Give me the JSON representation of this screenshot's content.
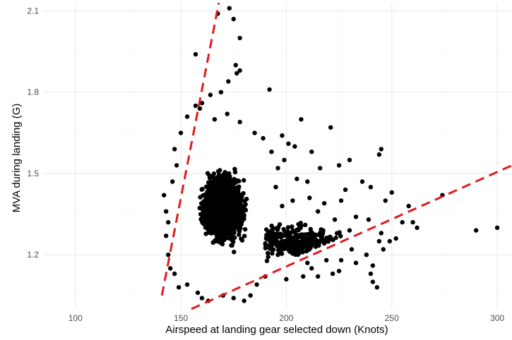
{
  "chart_data": {
    "type": "scatter",
    "title": "",
    "xlabel": "Airspeed at landing gear selected down (Knots)",
    "ylabel": "MVA during landing (G)",
    "xlim": [
      85,
      307
    ],
    "ylim": [
      1.0,
      2.13
    ],
    "x_ticks": [
      100,
      150,
      200,
      250,
      300
    ],
    "y_ticks": [
      1.2,
      1.5,
      1.8,
      2.1
    ],
    "x_tick_labels": [
      "100",
      "150",
      "200",
      "250",
      "300"
    ],
    "y_tick_labels": [
      "1.2",
      "1.5",
      "1.8",
      "2.1"
    ],
    "grid": true,
    "point_color": "#000000",
    "core_cluster": {
      "x_range": [
        145,
        195
      ],
      "y_range": [
        1.08,
        1.72
      ],
      "center": [
        170,
        1.38
      ],
      "description_count": "dense"
    },
    "points": [
      [
        167.5,
        2.09
      ],
      [
        173,
        2.11
      ],
      [
        175,
        2.07
      ],
      [
        178,
        2.0
      ],
      [
        157,
        1.94
      ],
      [
        176,
        1.9
      ],
      [
        178,
        1.88
      ],
      [
        176.5,
        1.87
      ],
      [
        172.5,
        1.84
      ],
      [
        192,
        1.81
      ],
      [
        169,
        1.8
      ],
      [
        159,
        1.74
      ],
      [
        160,
        1.76
      ],
      [
        164,
        1.79
      ],
      [
        207,
        1.7
      ],
      [
        221,
        1.67
      ],
      [
        204,
        1.6
      ],
      [
        212,
        1.58
      ],
      [
        216,
        1.52
      ],
      [
        245,
        1.59
      ],
      [
        244,
        1.57
      ],
      [
        230,
        1.55
      ],
      [
        225,
        1.53
      ],
      [
        236,
        1.47
      ],
      [
        228,
        1.44
      ],
      [
        240,
        1.45
      ],
      [
        250,
        1.43
      ],
      [
        226,
        1.4
      ],
      [
        247,
        1.4
      ],
      [
        258,
        1.38
      ],
      [
        233,
        1.34
      ],
      [
        239,
        1.33
      ],
      [
        255,
        1.32
      ],
      [
        230,
        1.29
      ],
      [
        245,
        1.28
      ],
      [
        262,
        1.3
      ],
      [
        244,
        1.25
      ],
      [
        249,
        1.25
      ],
      [
        252,
        1.26
      ],
      [
        231,
        1.22
      ],
      [
        238,
        1.2
      ],
      [
        219,
        1.18
      ],
      [
        226,
        1.18
      ],
      [
        246,
        1.22
      ],
      [
        233,
        1.17
      ],
      [
        241,
        1.16
      ],
      [
        212,
        1.15
      ],
      [
        225,
        1.14
      ],
      [
        240,
        1.13
      ],
      [
        215,
        1.12
      ],
      [
        222,
        1.13
      ],
      [
        208,
        1.12
      ],
      [
        241,
        1.1
      ],
      [
        243,
        1.08
      ],
      [
        260,
        1.32
      ],
      [
        274,
        1.42
      ],
      [
        290,
        1.29
      ],
      [
        300,
        1.3
      ],
      [
        198,
        1.64
      ],
      [
        201,
        1.61
      ],
      [
        199,
        1.55
      ],
      [
        205,
        1.48
      ],
      [
        210,
        1.47
      ],
      [
        211,
        1.41
      ],
      [
        203,
        1.4
      ],
      [
        218,
        1.39
      ],
      [
        215,
        1.36
      ],
      [
        223,
        1.33
      ],
      [
        209,
        1.31
      ],
      [
        216,
        1.28
      ],
      [
        202,
        1.26
      ],
      [
        207,
        1.22
      ],
      [
        196,
        1.2
      ],
      [
        210,
        1.17
      ],
      [
        200,
        1.11
      ],
      [
        190,
        1.12
      ],
      [
        186,
        1.09
      ],
      [
        142,
        1.42
      ],
      [
        143,
        1.36
      ],
      [
        144,
        1.32
      ],
      [
        143,
        1.27
      ],
      [
        144,
        1.2
      ],
      [
        145,
        1.15
      ],
      [
        147,
        1.13
      ],
      [
        146,
        1.47
      ],
      [
        148,
        1.53
      ],
      [
        147,
        1.59
      ],
      [
        150,
        1.65
      ],
      [
        153,
        1.71
      ],
      [
        157,
        1.75
      ],
      [
        160,
        1.04
      ],
      [
        163,
        1.03
      ],
      [
        158,
        1.06
      ],
      [
        175,
        1.04
      ],
      [
        183,
        1.05
      ],
      [
        180,
        1.03
      ],
      [
        170,
        1.05
      ],
      [
        153,
        1.09
      ],
      [
        149,
        1.08
      ],
      [
        166,
        1.7
      ],
      [
        172,
        1.72
      ],
      [
        178,
        1.69
      ],
      [
        185,
        1.65
      ],
      [
        189,
        1.63
      ],
      [
        193,
        1.58
      ],
      [
        196,
        1.52
      ],
      [
        195,
        1.45
      ],
      [
        198,
        1.38
      ]
    ],
    "reference_lines": [
      {
        "style": "dashed",
        "color": "#e31a1c",
        "from": [
          141,
          1.05
        ],
        "to": [
          168,
          2.13
        ]
      },
      {
        "style": "dashed",
        "color": "#e31a1c",
        "from": [
          155,
          1.0
        ],
        "to": [
          307,
          1.53
        ]
      }
    ]
  }
}
